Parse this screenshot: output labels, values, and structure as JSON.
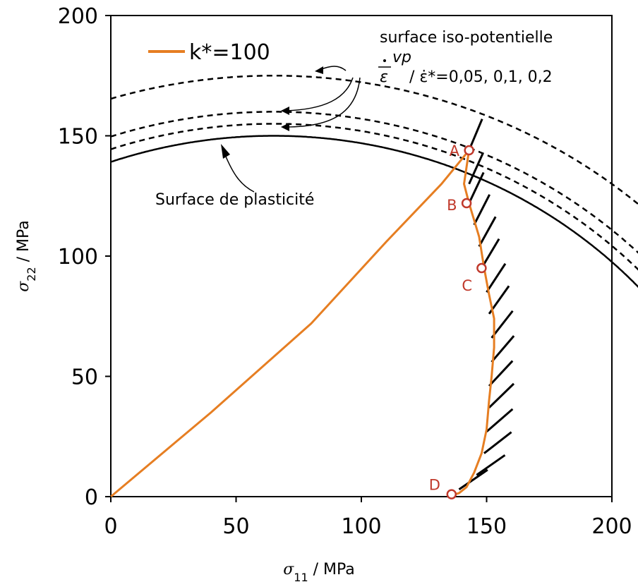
{
  "chart_data": {
    "type": "line",
    "xlabel": "σ11 / MPa",
    "ylabel": "σ22 / MPa",
    "xlim": [
      0,
      200
    ],
    "ylim": [
      0,
      200
    ],
    "xticks": [
      0,
      50,
      100,
      150,
      200
    ],
    "yticks": [
      0,
      50,
      100,
      150,
      200
    ],
    "grid": false,
    "legend": {
      "position": "top-left",
      "entries": [
        "k*=100"
      ]
    },
    "yield_surface": {
      "label": "Surface de plasticité",
      "center": [
        65,
        -50
      ],
      "radius": 200,
      "x_range": [
        0,
        127
      ]
    },
    "iso_potential_surfaces": {
      "label": "surface iso-potentielle",
      "rate_labels": [
        "0,05",
        "0,1",
        "0,2"
      ],
      "label_rate": "/ ε̇*=0,05, 0,1, 0,2",
      "radii": [
        205,
        210,
        225
      ]
    },
    "loading_path": {
      "name": "k*=100",
      "color": "#e67e22",
      "points": [
        [
          0,
          0
        ],
        [
          40,
          35
        ],
        [
          80,
          72
        ],
        [
          110,
          106
        ],
        [
          132,
          130
        ],
        [
          143,
          144
        ],
        [
          141,
          130
        ],
        [
          143,
          122
        ],
        [
          147,
          108
        ],
        [
          149,
          95
        ],
        [
          151,
          84
        ],
        [
          153,
          74
        ],
        [
          153,
          62
        ],
        [
          152,
          50
        ],
        [
          151,
          40
        ],
        [
          150,
          28
        ],
        [
          148,
          18
        ],
        [
          145,
          10
        ],
        [
          142,
          4
        ],
        [
          139,
          1.5
        ],
        [
          136,
          0.5
        ]
      ]
    },
    "points": [
      {
        "label": "A",
        "x": 143,
        "y": 144
      },
      {
        "label": "B",
        "x": 142,
        "y": 122
      },
      {
        "label": "C",
        "x": 148,
        "y": 95
      },
      {
        "label": "D",
        "x": 136,
        "y": 1
      }
    ],
    "normal_segments": {
      "points": [
        [
          143,
          144
        ],
        [
          143,
          130
        ],
        [
          143,
          122
        ],
        [
          145,
          113
        ],
        [
          147,
          104
        ],
        [
          148,
          95
        ],
        [
          150,
          85
        ],
        [
          151,
          76
        ],
        [
          152,
          66
        ],
        [
          152,
          56
        ],
        [
          151,
          46
        ],
        [
          151,
          37
        ],
        [
          150,
          27
        ],
        [
          149,
          18
        ],
        [
          146,
          9
        ],
        [
          139,
          3
        ]
      ]
    },
    "colors": {
      "path": "#e67e22",
      "curves": "#000000",
      "points": "#c0392b"
    }
  }
}
